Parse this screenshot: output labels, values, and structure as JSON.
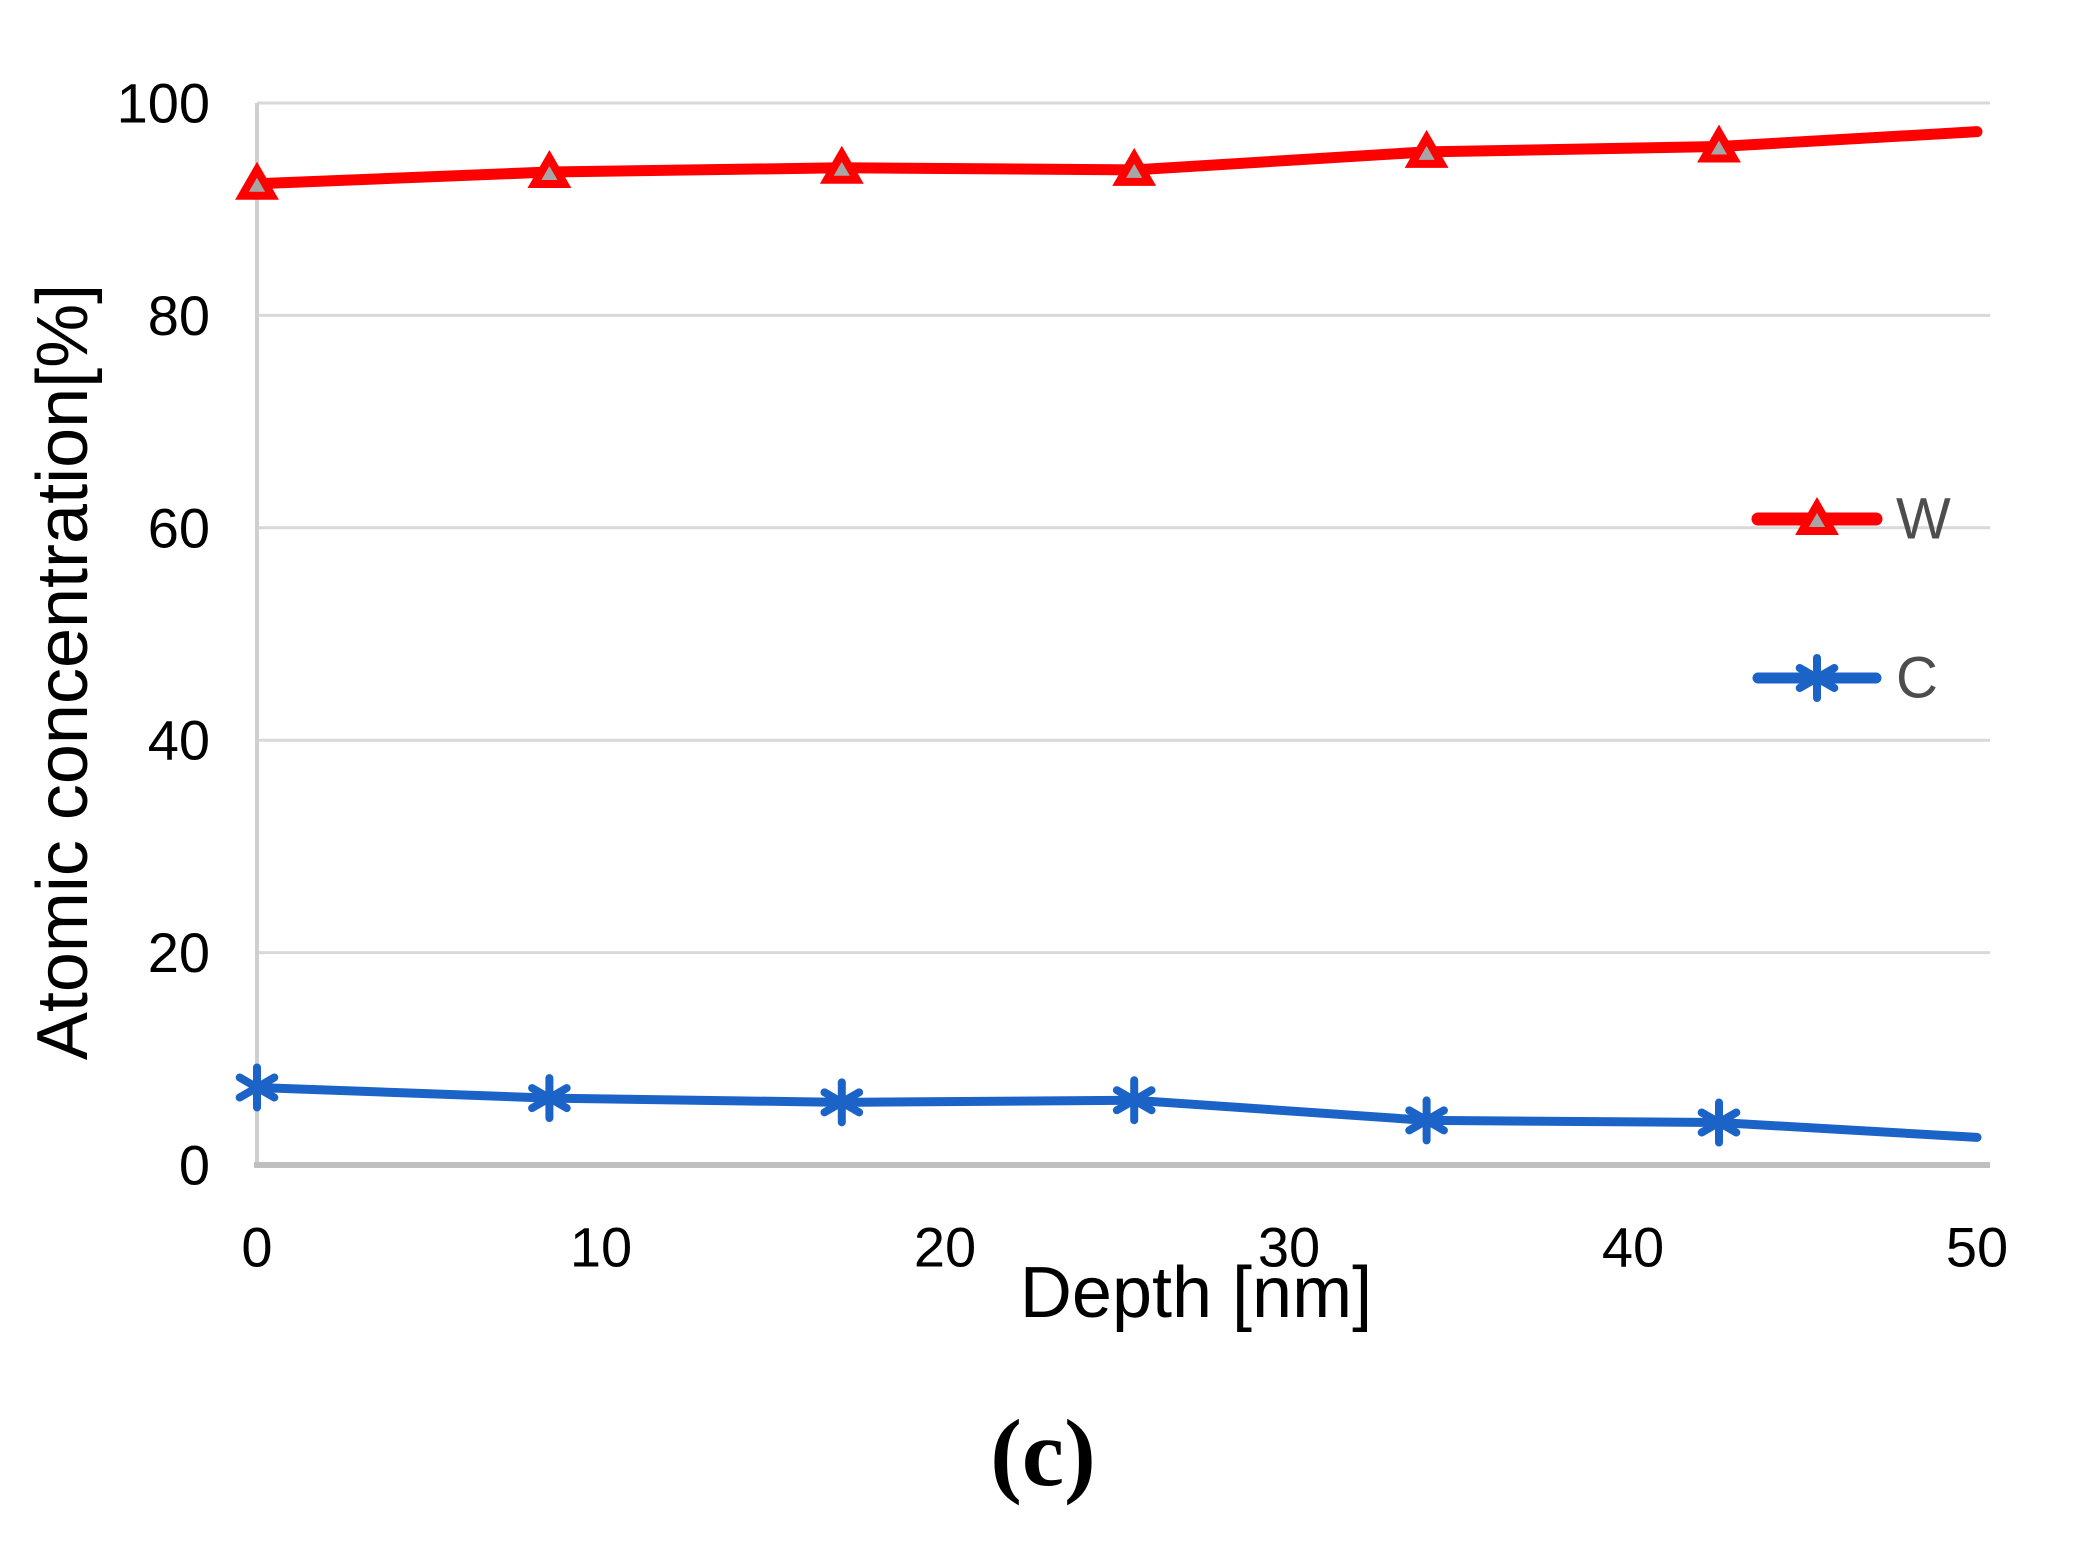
{
  "chart_data": {
    "type": "line",
    "title": "",
    "xlabel": "Depth [nm]",
    "ylabel": "Atomic concentration[%]",
    "caption": "(c)",
    "x": [
      0,
      8.5,
      17,
      25.5,
      34,
      42.5,
      50
    ],
    "series": [
      {
        "name": "W",
        "color": "#ff0000",
        "line_width": 11,
        "marker": "triangle",
        "marker_fill": "#a6a6a6",
        "marker_indices": [
          0,
          1,
          2,
          3,
          4,
          5
        ],
        "values": [
          92.4,
          93.5,
          93.9,
          93.7,
          95.4,
          95.9,
          97.3
        ]
      },
      {
        "name": "C",
        "color": "#1c63c7",
        "line_width": 9,
        "marker": "asterisk",
        "marker_indices": [
          0,
          1,
          2,
          3,
          4,
          5
        ],
        "values": [
          7.3,
          6.3,
          5.9,
          6.1,
          4.2,
          4.0,
          2.6
        ]
      }
    ],
    "xticks": [
      0,
      10,
      20,
      30,
      40,
      50
    ],
    "yticks": [
      0,
      20,
      40,
      60,
      80,
      100
    ],
    "xlim": [
      0,
      50
    ],
    "ylim": [
      0,
      100
    ],
    "grid": "horizontal",
    "legend_position": "inside-right"
  },
  "colors": {
    "grid": "#d9d9d9",
    "axis_line": "#bfbfbf",
    "tick_text": "#000000",
    "legend_text": "#4d4d4d"
  }
}
